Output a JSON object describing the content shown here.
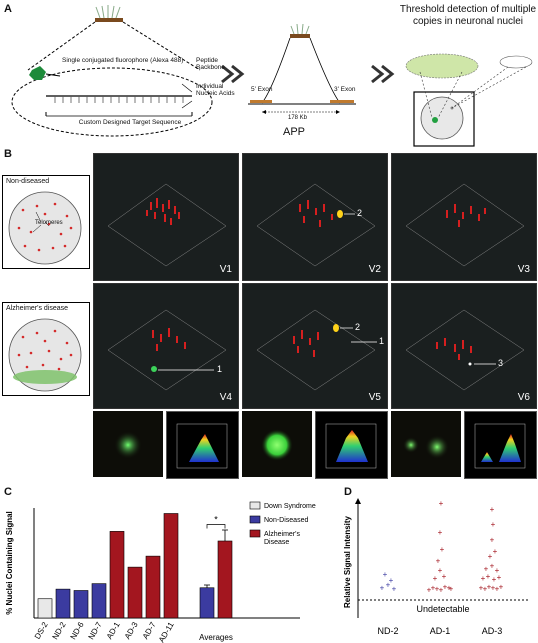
{
  "panels": {
    "a": "A",
    "b": "B",
    "c": "C",
    "d": "D"
  },
  "panel_a": {
    "fluorophore_label": "Single conjugated fluorophore (Alexa 488)",
    "backbone_label": "Peptide Backbone",
    "nucleic_label": "Individual Nucleic Acids",
    "target_label": "Custom Designed Target Sequence",
    "exon5": "5' Exon",
    "exon3": "3' Exon",
    "distance": "178 Kb",
    "gene": "APP",
    "threshold_title": "Threshold detection of multiple copies in neuronal nuclei"
  },
  "panel_b": {
    "non_diseased": "Non-diseased",
    "telomeres": "Telomeres",
    "alzheimers": "Alzheimer's disease",
    "views": [
      "V1",
      "V2",
      "V3",
      "V4",
      "V5",
      "V6"
    ],
    "arrow_labels": {
      "v2": "2",
      "v4": "1",
      "v5a": "2",
      "v5b": "1",
      "v6": "3"
    }
  },
  "chart_data": [
    {
      "type": "bar",
      "ylabel": "% Nuclei Containing Signal",
      "categories": [
        "DS-2",
        "ND-2",
        "ND-6",
        "ND-7",
        "AD-1",
        "AD-3",
        "AD-7",
        "AD-11"
      ],
      "values": [
        14,
        21,
        20,
        25,
        63,
        37,
        45,
        76
      ],
      "colors": [
        "#e8e8e8",
        "#3b3ba0",
        "#3b3ba0",
        "#3b3ba0",
        "#a3161f",
        "#a3161f",
        "#a3161f",
        "#a3161f"
      ],
      "averages": {
        "label": "Averages",
        "values": [
          22,
          56
        ],
        "errors": [
          2,
          8
        ],
        "colors": [
          "#3b3ba0",
          "#a3161f"
        ],
        "significance": "*"
      },
      "ylim": [
        0,
        80
      ],
      "legend": [
        {
          "name": "Down Syndrome",
          "color": "#e8e8e8"
        },
        {
          "name": "Non-Diseased",
          "color": "#3b3ba0"
        },
        {
          "name": "Alzheimer's Disease",
          "color": "#a3161f"
        }
      ]
    },
    {
      "type": "scatter",
      "ylabel": "Relative Signal Intensity",
      "categories": [
        "ND-2",
        "AD-1",
        "AD-3"
      ],
      "threshold_label": "Undetectable",
      "points": {
        "ND-2": [
          [
            -0.12,
            0.12
          ],
          [
            0.0,
            0.15
          ],
          [
            0.12,
            0.11
          ],
          [
            -0.06,
            0.26
          ],
          [
            0.06,
            0.2
          ]
        ],
        "AD-1": [
          [
            -0.22,
            0.1
          ],
          [
            -0.14,
            0.12
          ],
          [
            -0.06,
            0.11
          ],
          [
            0.02,
            0.1
          ],
          [
            0.1,
            0.13
          ],
          [
            0.18,
            0.12
          ],
          [
            0.22,
            0.11
          ],
          [
            -0.1,
            0.22
          ],
          [
            0.0,
            0.3
          ],
          [
            0.08,
            0.24
          ],
          [
            -0.04,
            0.4
          ],
          [
            0.04,
            0.52
          ],
          [
            0.0,
            0.7
          ],
          [
            0.02,
            1.0
          ]
        ],
        "AD-3": [
          [
            -0.22,
            0.12
          ],
          [
            -0.14,
            0.11
          ],
          [
            -0.06,
            0.13
          ],
          [
            0.02,
            0.12
          ],
          [
            0.1,
            0.11
          ],
          [
            0.18,
            0.13
          ],
          [
            -0.18,
            0.22
          ],
          [
            -0.08,
            0.24
          ],
          [
            0.04,
            0.21
          ],
          [
            0.14,
            0.23
          ],
          [
            -0.12,
            0.32
          ],
          [
            0.0,
            0.35
          ],
          [
            0.1,
            0.3
          ],
          [
            -0.04,
            0.45
          ],
          [
            0.06,
            0.5
          ],
          [
            0.0,
            0.62
          ],
          [
            0.02,
            0.78
          ],
          [
            0.0,
            0.94
          ]
        ]
      },
      "colors": {
        "ND-2": "#3b3ba0",
        "AD-1": "#a3161f",
        "AD-3": "#a3161f"
      }
    }
  ]
}
